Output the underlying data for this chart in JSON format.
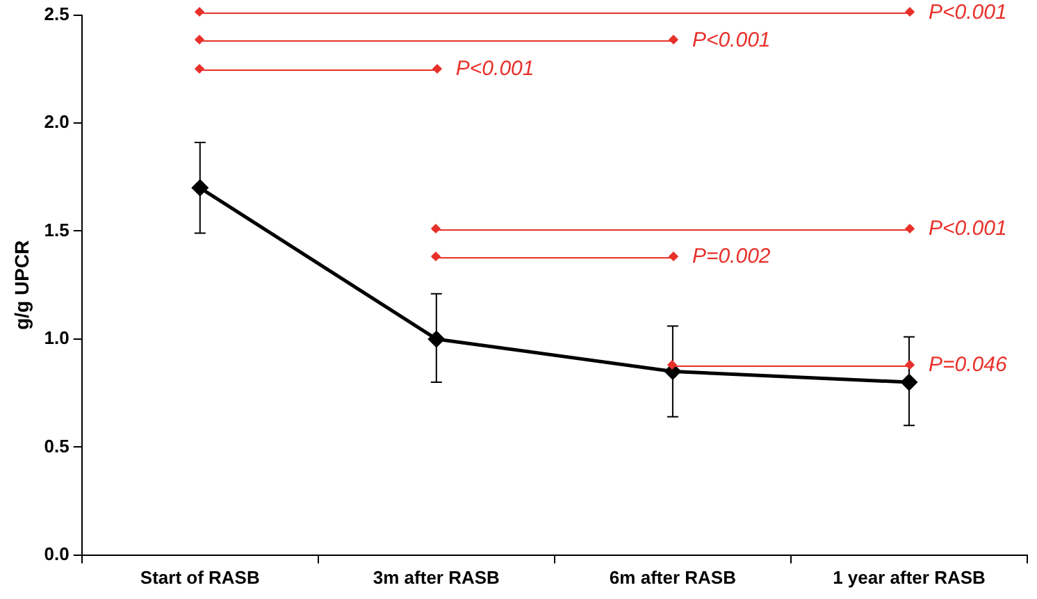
{
  "chart_data": {
    "type": "line",
    "ylabel": "g/g UPCR",
    "categories": [
      "Start of RASB",
      "3m after RASB",
      "6m after RASB",
      "1 year after RASB"
    ],
    "series": [
      {
        "color": "#000000",
        "values": [
          1.7,
          1.0,
          0.85,
          0.8
        ],
        "errors": [
          [
            1.49,
            1.91
          ],
          [
            0.8,
            1.21
          ],
          [
            0.64,
            1.06
          ],
          [
            0.6,
            1.01
          ]
        ]
      }
    ],
    "ylim": [
      0,
      2.5
    ],
    "yticks": [
      {
        "value": 0,
        "label": "0.0"
      },
      {
        "value": 0.5,
        "label": "0.5"
      },
      {
        "value": 1,
        "label": "1.0"
      },
      {
        "value": 1.5,
        "label": "1.5"
      },
      {
        "value": 2,
        "label": "2.0"
      },
      {
        "value": 2.5,
        "label": "2.5"
      }
    ],
    "grid": false,
    "legend": false,
    "marker": "diamond",
    "line_style": "solid",
    "annotations": [
      {
        "text": "P<0.001",
        "x": "1 year after RASB",
        "y": 2.51
      },
      {
        "text": "P<0.001",
        "x": "6m after RASB",
        "y": 2.38
      },
      {
        "text": "P<0.001",
        "x": "3m after RASB",
        "y": 2.25
      },
      {
        "text": "P<0.001",
        "x": "1 year after RASB",
        "y": 1.51
      },
      {
        "text": "P=0.002",
        "x": "6m after RASB",
        "y": 1.38
      },
      {
        "text": "P=0.046",
        "x": "1 year after RASB",
        "y": 0.88
      }
    ]
  }
}
